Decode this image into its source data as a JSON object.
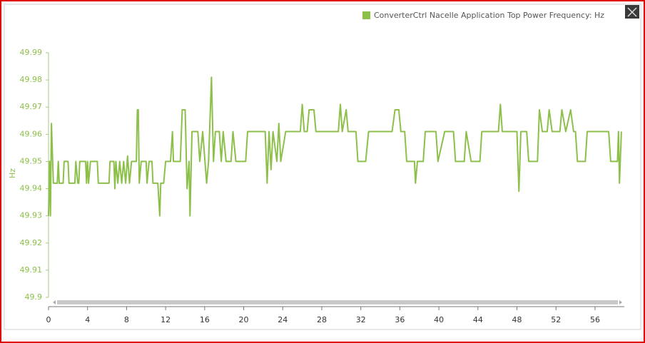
{
  "chart_data": {
    "type": "line",
    "y_label": "Hz",
    "legend": "top-right",
    "x": [
      0,
      0.1,
      0.2,
      0.3,
      0.5,
      0.9,
      1.0,
      1.1,
      1.5,
      1.6,
      2.0,
      2.1,
      2.7,
      2.8,
      3.0,
      3.1,
      3.2,
      3.8,
      3.9,
      4.0,
      4.1,
      4.3,
      5.0,
      5.1,
      6.2,
      6.3,
      6.7,
      6.8,
      6.9,
      7.1,
      7.3,
      7.5,
      7.7,
      7.9,
      8.1,
      8.3,
      8.5,
      9.0,
      9.1,
      9.2,
      9.3,
      9.5,
      10.0,
      10.1,
      10.3,
      10.6,
      10.7,
      11.2,
      11.4,
      11.5,
      11.8,
      12.0,
      12.5,
      12.7,
      12.8,
      13.5,
      13.7,
      14.0,
      14.2,
      14.4,
      14.5,
      14.7,
      15.3,
      15.5,
      15.8,
      16.2,
      16.4,
      16.7,
      16.9,
      17.1,
      17.5,
      17.7,
      17.9,
      18.2,
      18.7,
      18.9,
      19.2,
      20.2,
      20.4,
      22.2,
      22.4,
      22.6,
      22.8,
      23.0,
      23.4,
      23.6,
      23.8,
      24.3,
      25.8,
      26.0,
      26.2,
      26.5,
      26.7,
      27.2,
      27.4,
      29.7,
      29.9,
      30.1,
      30.5,
      30.7,
      31.5,
      31.7,
      32.5,
      32.8,
      35.2,
      35.5,
      35.9,
      36.1,
      36.5,
      36.7,
      37.5,
      37.6,
      37.8,
      38.4,
      38.6,
      39.7,
      39.9,
      40.6,
      41.5,
      41.7,
      42.6,
      42.8,
      43.3,
      44.2,
      44.4,
      46.1,
      46.3,
      46.5,
      48.0,
      48.2,
      48.4,
      49.0,
      49.2,
      50.1,
      50.3,
      50.6,
      51.1,
      51.3,
      51.6,
      52.4,
      52.6,
      53.0,
      53.5,
      53.8,
      54.0,
      54.2,
      55.0,
      55.2,
      57.4,
      57.6,
      58.3,
      58.4,
      58.5,
      58.7
    ],
    "series": [
      {
        "name": "ConverterCtrl Nacelle Application Top Power Frequency: Hz",
        "color": "#8cc04a",
        "values": [
          49.93,
          49.95,
          49.93,
          49.964,
          49.942,
          49.942,
          49.95,
          49.942,
          49.942,
          49.95,
          49.95,
          49.942,
          49.942,
          49.95,
          49.942,
          49.942,
          49.95,
          49.95,
          49.942,
          49.95,
          49.942,
          49.95,
          49.95,
          49.942,
          49.942,
          49.95,
          49.95,
          49.94,
          49.95,
          49.942,
          49.95,
          49.942,
          49.95,
          49.942,
          49.952,
          49.942,
          49.95,
          49.95,
          49.969,
          49.969,
          49.942,
          49.95,
          49.95,
          49.942,
          49.95,
          49.95,
          49.942,
          49.942,
          49.93,
          49.942,
          49.942,
          49.95,
          49.95,
          49.961,
          49.95,
          49.95,
          49.969,
          49.969,
          49.94,
          49.95,
          49.93,
          49.961,
          49.961,
          49.95,
          49.961,
          49.942,
          49.95,
          49.981,
          49.95,
          49.961,
          49.961,
          49.95,
          49.961,
          49.95,
          49.95,
          49.961,
          49.95,
          49.95,
          49.961,
          49.961,
          49.942,
          49.961,
          49.947,
          49.961,
          49.95,
          49.964,
          49.95,
          49.961,
          49.961,
          49.971,
          49.961,
          49.961,
          49.969,
          49.969,
          49.961,
          49.961,
          49.971,
          49.961,
          49.969,
          49.961,
          49.961,
          49.95,
          49.95,
          49.961,
          49.961,
          49.969,
          49.969,
          49.961,
          49.961,
          49.95,
          49.95,
          49.942,
          49.95,
          49.95,
          49.961,
          49.961,
          49.95,
          49.961,
          49.961,
          49.95,
          49.95,
          49.961,
          49.95,
          49.95,
          49.961,
          49.961,
          49.971,
          49.961,
          49.961,
          49.939,
          49.961,
          49.961,
          49.95,
          49.95,
          49.969,
          49.961,
          49.961,
          49.969,
          49.961,
          49.961,
          49.969,
          49.961,
          49.969,
          49.961,
          49.961,
          49.95,
          49.95,
          49.961,
          49.961,
          49.95,
          49.95,
          49.961,
          49.942,
          49.961
        ]
      }
    ],
    "xlim": [
      0,
      59
    ],
    "xticks": [
      0,
      4,
      8,
      12,
      16,
      20,
      24,
      28,
      32,
      36,
      40,
      44,
      48,
      52,
      56
    ],
    "ylim": [
      49.9,
      49.99
    ],
    "yticks": [
      49.9,
      49.91,
      49.92,
      49.93,
      49.94,
      49.95,
      49.96,
      49.97,
      49.98,
      49.99
    ]
  }
}
